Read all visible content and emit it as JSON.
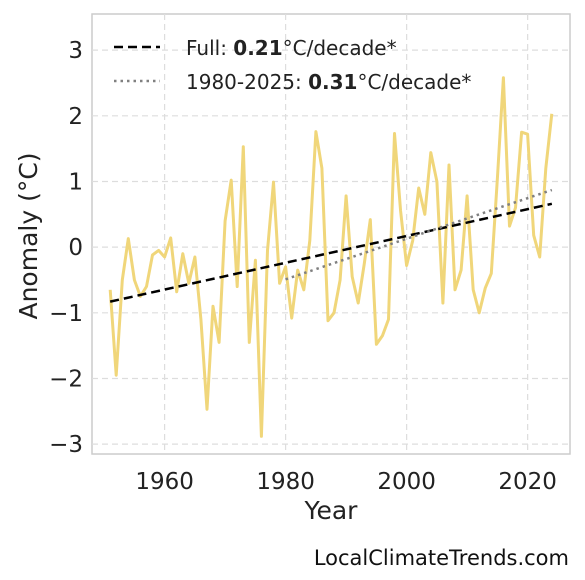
{
  "chart_data": {
    "type": "line",
    "xlabel": "Year",
    "ylabel": "Anomaly (°C)",
    "xlim": [
      1948,
      2027
    ],
    "ylim": [
      -3.15,
      3.55
    ],
    "xticks": [
      1960,
      1980,
      2000,
      2020
    ],
    "xtick_labels": [
      "1960",
      "1980",
      "2000",
      "2020"
    ],
    "yticks": [
      -3,
      -2,
      -1,
      0,
      1,
      2,
      3
    ],
    "ytick_labels": [
      "−3",
      "−2",
      "−1",
      "0",
      "1",
      "2",
      "3"
    ],
    "grid": true,
    "legend_position": "top-left",
    "series": [
      {
        "color": "#f0d67a",
        "x": [
          1951,
          1952,
          1953,
          1954,
          1955,
          1956,
          1957,
          1958,
          1959,
          1960,
          1961,
          1962,
          1963,
          1964,
          1965,
          1966,
          1967,
          1968,
          1969,
          1970,
          1971,
          1972,
          1973,
          1974,
          1975,
          1976,
          1977,
          1978,
          1979,
          1980,
          1981,
          1982,
          1983,
          1984,
          1985,
          1986,
          1987,
          1988,
          1989,
          1990,
          1991,
          1992,
          1993,
          1994,
          1995,
          1996,
          1997,
          1998,
          1999,
          2000,
          2001,
          2002,
          2003,
          2004,
          2005,
          2006,
          2007,
          2008,
          2009,
          2010,
          2011,
          2012,
          2013,
          2014,
          2015,
          2016,
          2017,
          2018,
          2019,
          2020,
          2021,
          2022,
          2023,
          2024
        ],
        "y": [
          -0.65,
          -1.95,
          -0.5,
          0.13,
          -0.5,
          -0.75,
          -0.6,
          -0.12,
          -0.05,
          -0.15,
          0.14,
          -0.68,
          -0.1,
          -0.55,
          -0.15,
          -1.1,
          -2.47,
          -0.9,
          -1.45,
          0.4,
          1.02,
          -0.6,
          1.53,
          -1.45,
          -0.2,
          -2.88,
          -0.05,
          0.99,
          -0.55,
          -0.3,
          -1.08,
          -0.35,
          -0.65,
          0.1,
          1.76,
          1.2,
          -1.12,
          -1.0,
          -0.5,
          0.78,
          -0.45,
          -0.85,
          -0.25,
          0.42,
          -1.48,
          -1.35,
          -1.1,
          1.73,
          0.55,
          -0.28,
          0.1,
          0.9,
          0.5,
          1.44,
          1.0,
          -0.85,
          1.25,
          -0.65,
          -0.35,
          0.78,
          -0.65,
          -1.0,
          -0.62,
          -0.4,
          1.05,
          2.58,
          0.32,
          0.6,
          1.75,
          1.72,
          0.18,
          -0.15,
          1.2,
          2.03
        ]
      }
    ],
    "trends": [
      {
        "label_prefix": "Full: ",
        "value": "0.21",
        "label_suffix": "°C/decade*",
        "style": "dashed",
        "color": "#000000",
        "x": [
          1951,
          2024
        ],
        "y": [
          -0.83,
          0.66
        ]
      },
      {
        "label_prefix": "1980-2025: ",
        "value": "0.31",
        "label_suffix": "°C/decade*",
        "style": "dotted",
        "color": "#808080",
        "x": [
          1980,
          2024
        ],
        "y": [
          -0.49,
          0.87
        ]
      }
    ]
  },
  "credit": "LocalClimateTrends.com"
}
